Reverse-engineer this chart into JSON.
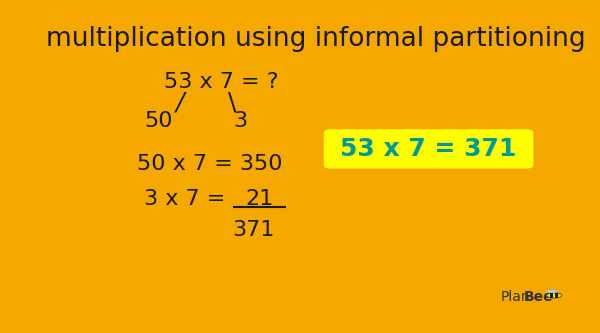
{
  "title": "multiplication using informal partitioning",
  "title_fontsize": 19,
  "border_color": "#F5A800",
  "background_color": "#FFFFFF",
  "main_equation": "53 x 7 = ?",
  "left_branch": "/",
  "right_branch": "\\",
  "part_left": "50",
  "part_right": "3",
  "eq1": "50 x 7 = 350",
  "eq2_left": "3 x 7 = ",
  "eq2_underlined": "21",
  "result": "371",
  "highlight_text": "53 x 7 = 371",
  "highlight_bg": "#FFFF00",
  "highlight_text_color": "#009999",
  "text_color": "#1a1a1a",
  "font_size_main": 15,
  "font_size_highlight": 18,
  "font_size_planbee": 10
}
